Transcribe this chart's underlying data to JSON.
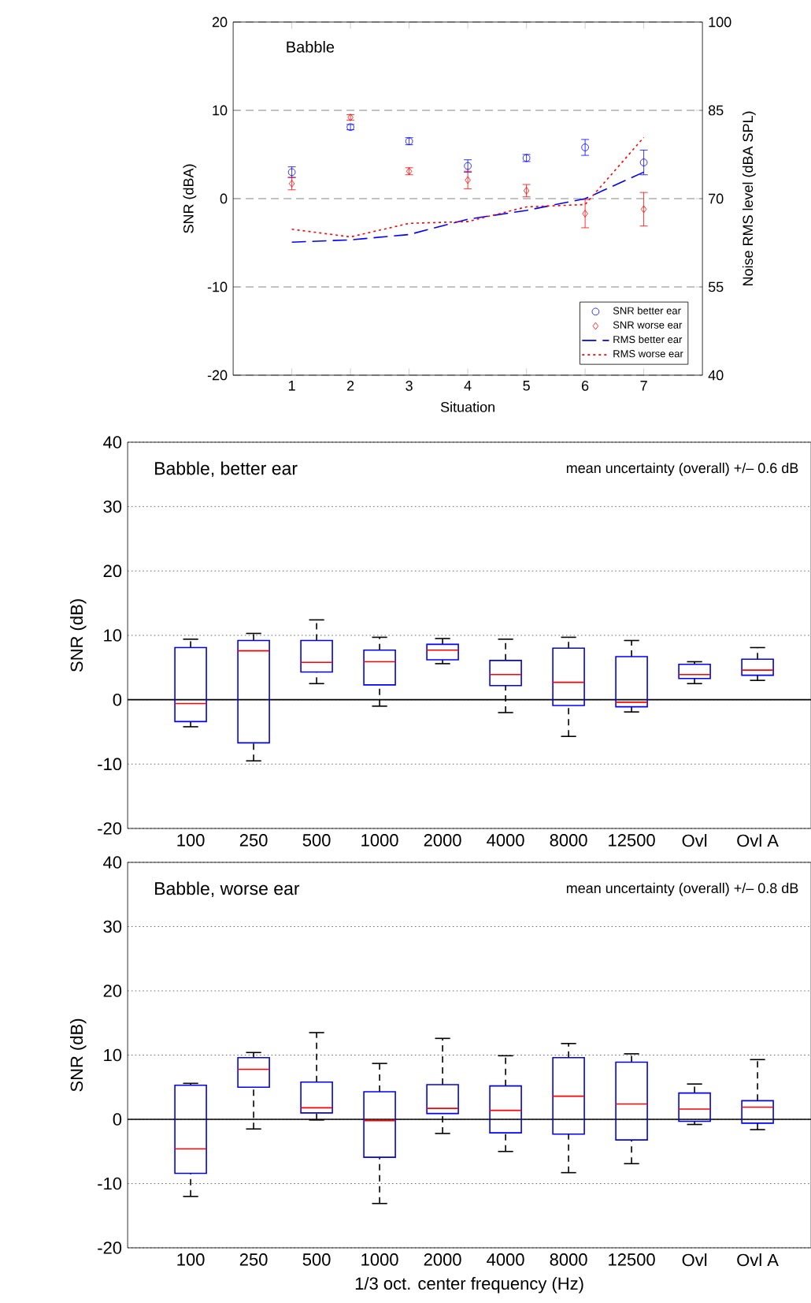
{
  "chart_data": [
    {
      "type": "scatter",
      "xlabel": "Situation",
      "ylabel": "SNR (dBA)",
      "y2label": "Noise RMS level (dBA SPL)",
      "annotations": [
        "Babble"
      ],
      "x": [
        1,
        2,
        3,
        4,
        5,
        6,
        7
      ],
      "xlim": [
        0,
        8
      ],
      "xticks": [
        1,
        2,
        3,
        4,
        5,
        6,
        7
      ],
      "ylim": [
        -20,
        20
      ],
      "yticks": [
        -20,
        -10,
        0,
        10,
        20
      ],
      "y2lim": [
        40,
        100
      ],
      "y2ticks": [
        40,
        55,
        70,
        85,
        100
      ],
      "grid": "y",
      "legend": "bottom right",
      "series": [
        {
          "name": "SNR better ear",
          "type": "scatter",
          "marker": "circle",
          "color": "#0000ff",
          "values": [
            3.0,
            8.1,
            6.5,
            3.7,
            4.6,
            5.8,
            4.1
          ],
          "errors": [
            0.6,
            0.3,
            0.4,
            0.7,
            0.4,
            0.9,
            1.4
          ]
        },
        {
          "name": "SNR worse ear",
          "type": "scatter",
          "marker": "diamond",
          "color": "#ff0000",
          "values": [
            1.7,
            9.2,
            3.1,
            2.1,
            0.9,
            -1.7,
            -1.2
          ],
          "errors": [
            0.7,
            0.3,
            0.4,
            1.0,
            0.7,
            1.6,
            1.9
          ]
        },
        {
          "name": "RMS better ear",
          "type": "line",
          "axis": "y2",
          "line_style": "dashed",
          "color": "#0000ff",
          "values": [
            62.6,
            63.0,
            63.9,
            66.5,
            68.0,
            70.0,
            74.5
          ]
        },
        {
          "name": "RMS worse ear",
          "type": "line",
          "axis": "y2",
          "line_style": "dotted",
          "color": "#ff0000",
          "values": [
            64.8,
            63.5,
            65.8,
            66.1,
            68.6,
            69.0,
            80.4
          ]
        }
      ]
    },
    {
      "type": "box",
      "ylabel": "SNR (dB)",
      "annotations": [
        "Babble, better ear",
        "mean uncertainty (overall) +/– 0.6 dB"
      ],
      "categories": [
        "100",
        "250",
        "500",
        "1000",
        "2000",
        "4000",
        "8000",
        "12500",
        "Ovl",
        "Ovl A"
      ],
      "ylim": [
        -20,
        40
      ],
      "yticks": [
        -20,
        -10,
        0,
        10,
        20,
        30,
        40
      ],
      "grid": "y",
      "color": "#0000ff",
      "ref_lines": [
        {
          "axis": "y",
          "value": 0
        }
      ],
      "boxes": [
        {
          "low": -4.2,
          "q1": -3.4,
          "median": -0.6,
          "q3": 8.1,
          "high": 9.4
        },
        {
          "low": -9.5,
          "q1": -6.7,
          "median": 7.6,
          "q3": 9.2,
          "high": 10.3
        },
        {
          "low": 2.5,
          "q1": 4.3,
          "median": 5.8,
          "q3": 9.2,
          "high": 12.4
        },
        {
          "low": -1.0,
          "q1": 2.3,
          "median": 5.9,
          "q3": 7.7,
          "high": 9.7
        },
        {
          "low": 5.6,
          "q1": 6.2,
          "median": 7.7,
          "q3": 8.6,
          "high": 9.5
        },
        {
          "low": -2.0,
          "q1": 2.2,
          "median": 3.9,
          "q3": 6.1,
          "high": 9.4
        },
        {
          "low": -5.7,
          "q1": -0.9,
          "median": 2.7,
          "q3": 8.0,
          "high": 9.7
        },
        {
          "low": -1.9,
          "q1": -1.1,
          "median": -0.4,
          "q3": 6.7,
          "high": 9.2
        },
        {
          "low": 2.5,
          "q1": 3.3,
          "median": 3.9,
          "q3": 5.5,
          "high": 5.9
        },
        {
          "low": 3.0,
          "q1": 3.8,
          "median": 4.6,
          "q3": 6.3,
          "high": 8.1
        }
      ]
    },
    {
      "type": "box",
      "ylabel": "SNR (dB)",
      "xlabel": "1/3 oct. center frequency (Hz)",
      "annotations": [
        "Babble, worse ear",
        "mean uncertainty (overall) +/– 0.8 dB"
      ],
      "categories": [
        "100",
        "250",
        "500",
        "1000",
        "2000",
        "4000",
        "8000",
        "12500",
        "Ovl",
        "Ovl A"
      ],
      "ylim": [
        -20,
        40
      ],
      "yticks": [
        -20,
        -10,
        0,
        10,
        20,
        30,
        40
      ],
      "grid": "y",
      "color": "#0000ff",
      "ref_lines": [
        {
          "axis": "y",
          "value": 0
        }
      ],
      "boxes": [
        {
          "low": -12.0,
          "q1": -8.4,
          "median": -4.6,
          "q3": 5.3,
          "high": 5.6
        },
        {
          "low": -1.5,
          "q1": 5.0,
          "median": 7.8,
          "q3": 9.6,
          "high": 10.4
        },
        {
          "low": -0.1,
          "q1": 1.0,
          "median": 1.8,
          "q3": 5.8,
          "high": 13.5
        },
        {
          "low": -13.1,
          "q1": -5.9,
          "median": -0.2,
          "q3": 4.3,
          "high": 8.7
        },
        {
          "low": -2.2,
          "q1": 0.9,
          "median": 1.7,
          "q3": 5.4,
          "high": 12.6
        },
        {
          "low": -5.0,
          "q1": -2.1,
          "median": 1.4,
          "q3": 5.2,
          "high": 9.9
        },
        {
          "low": -8.3,
          "q1": -2.3,
          "median": 3.6,
          "q3": 9.6,
          "high": 11.8
        },
        {
          "low": -6.9,
          "q1": -3.2,
          "median": 2.4,
          "q3": 8.9,
          "high": 10.2
        },
        {
          "low": -0.8,
          "q1": -0.3,
          "median": 1.6,
          "q3": 4.1,
          "high": 5.5
        },
        {
          "low": -1.6,
          "q1": -0.6,
          "median": 1.9,
          "q3": 2.9,
          "high": 9.3
        }
      ]
    }
  ]
}
